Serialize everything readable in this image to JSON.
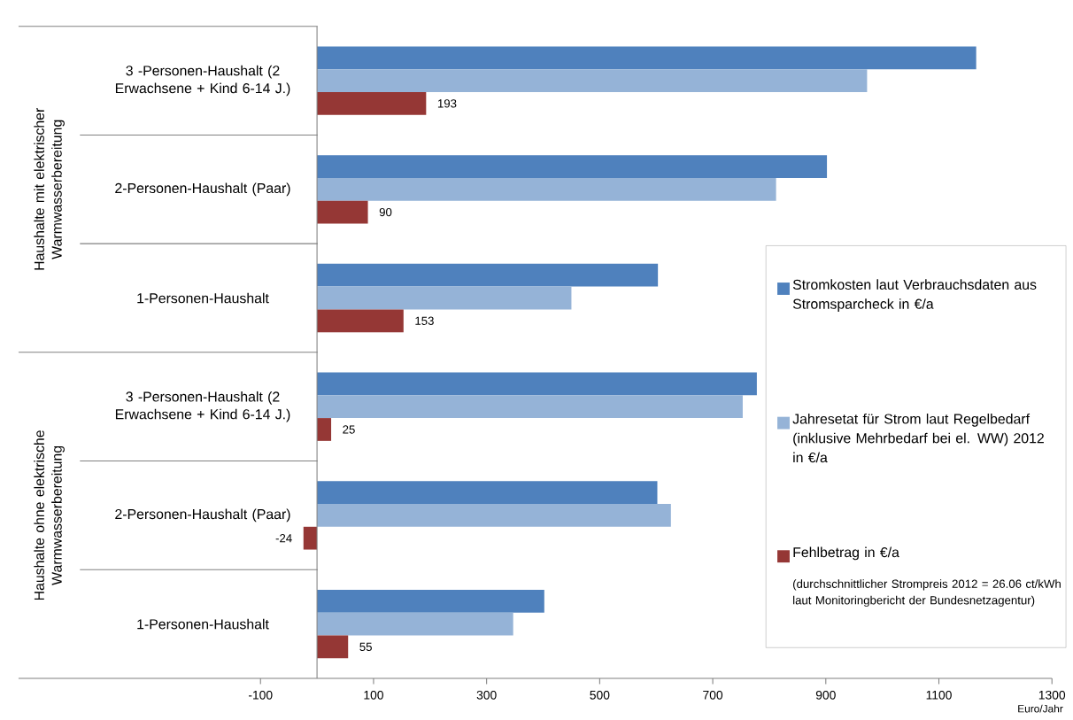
{
  "chart_data": {
    "type": "bar",
    "orientation": "horizontal",
    "xlabel": "Euro/Jahr",
    "categories": [
      "3 -Personen-Haushalt (2 Erwachsene + Kind 6-14 J.)",
      "2-Personen-Haushalt (Paar)",
      "1-Personen-Haushalt",
      "3 -Personen-Haushalt (2 Erwachsene + Kind 6-14 J.)",
      "2-Personen-Haushalt (Paar)",
      "1-Personen-Haushalt"
    ],
    "series": [
      {
        "name": "Stromkosten laut Verbrauchsdaten aus Stromsparcheck in €/a",
        "color": "#4f81bd",
        "values": [
          1166,
          902,
          603,
          778,
          602,
          402
        ]
      },
      {
        "name": "Jahresetat für Strom laut Regelbedarf (inklusive Mehrbedarf bei el. WW) 2012 in €/a",
        "color": "#95b3d7",
        "values": [
          973,
          812,
          450,
          753,
          626,
          347
        ]
      },
      {
        "name": "Fehlbetrag in €/a",
        "color": "#953735",
        "values": [
          193,
          90,
          153,
          25,
          -24,
          55
        ],
        "value_labels": [
          "193",
          "90",
          "153",
          "25",
          "-24",
          "55"
        ]
      }
    ],
    "xlim": [
      -528,
      1300
    ],
    "xticks": [
      -100,
      100,
      300,
      500,
      700,
      900,
      1100,
      1300
    ],
    "grid": false,
    "legend": "right",
    "annotations": [
      "Haushalte mit elektrischer Warmwasserbereitung",
      "Haushalte ohne elektrische Warmwasserbereitung",
      "(durchschnittlicher Strompreis 2012 = 26.06 ct/kWh laut Monitoringbericht der Bundesnetzagentur)"
    ]
  }
}
